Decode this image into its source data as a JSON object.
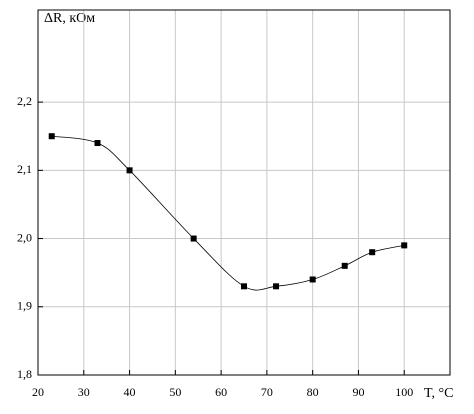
{
  "chart_data": {
    "type": "line",
    "y_label": "ΔR, кОм",
    "x_label": "T, °C",
    "x": [
      23,
      33,
      40,
      54,
      65,
      72,
      80,
      87,
      93,
      100
    ],
    "series": [
      {
        "color": "#000000",
        "values": [
          2.15,
          2.14,
          2.1,
          2.0,
          1.93,
          1.93,
          1.94,
          1.96,
          1.98,
          1.99
        ]
      }
    ],
    "xlim": [
      20,
      110
    ],
    "xticks": [
      20,
      30,
      40,
      50,
      60,
      70,
      80,
      90,
      100
    ],
    "ylim": [
      1.8,
      2.335
    ],
    "yticks": [
      {
        "value": 1.8,
        "label": "1,8"
      },
      {
        "value": 1.9,
        "label": "1,9"
      },
      {
        "value": 2.0,
        "label": "2,0"
      },
      {
        "value": 2.1,
        "label": "2,1"
      },
      {
        "value": 2.2,
        "label": "2,2"
      }
    ],
    "grid": true
  }
}
